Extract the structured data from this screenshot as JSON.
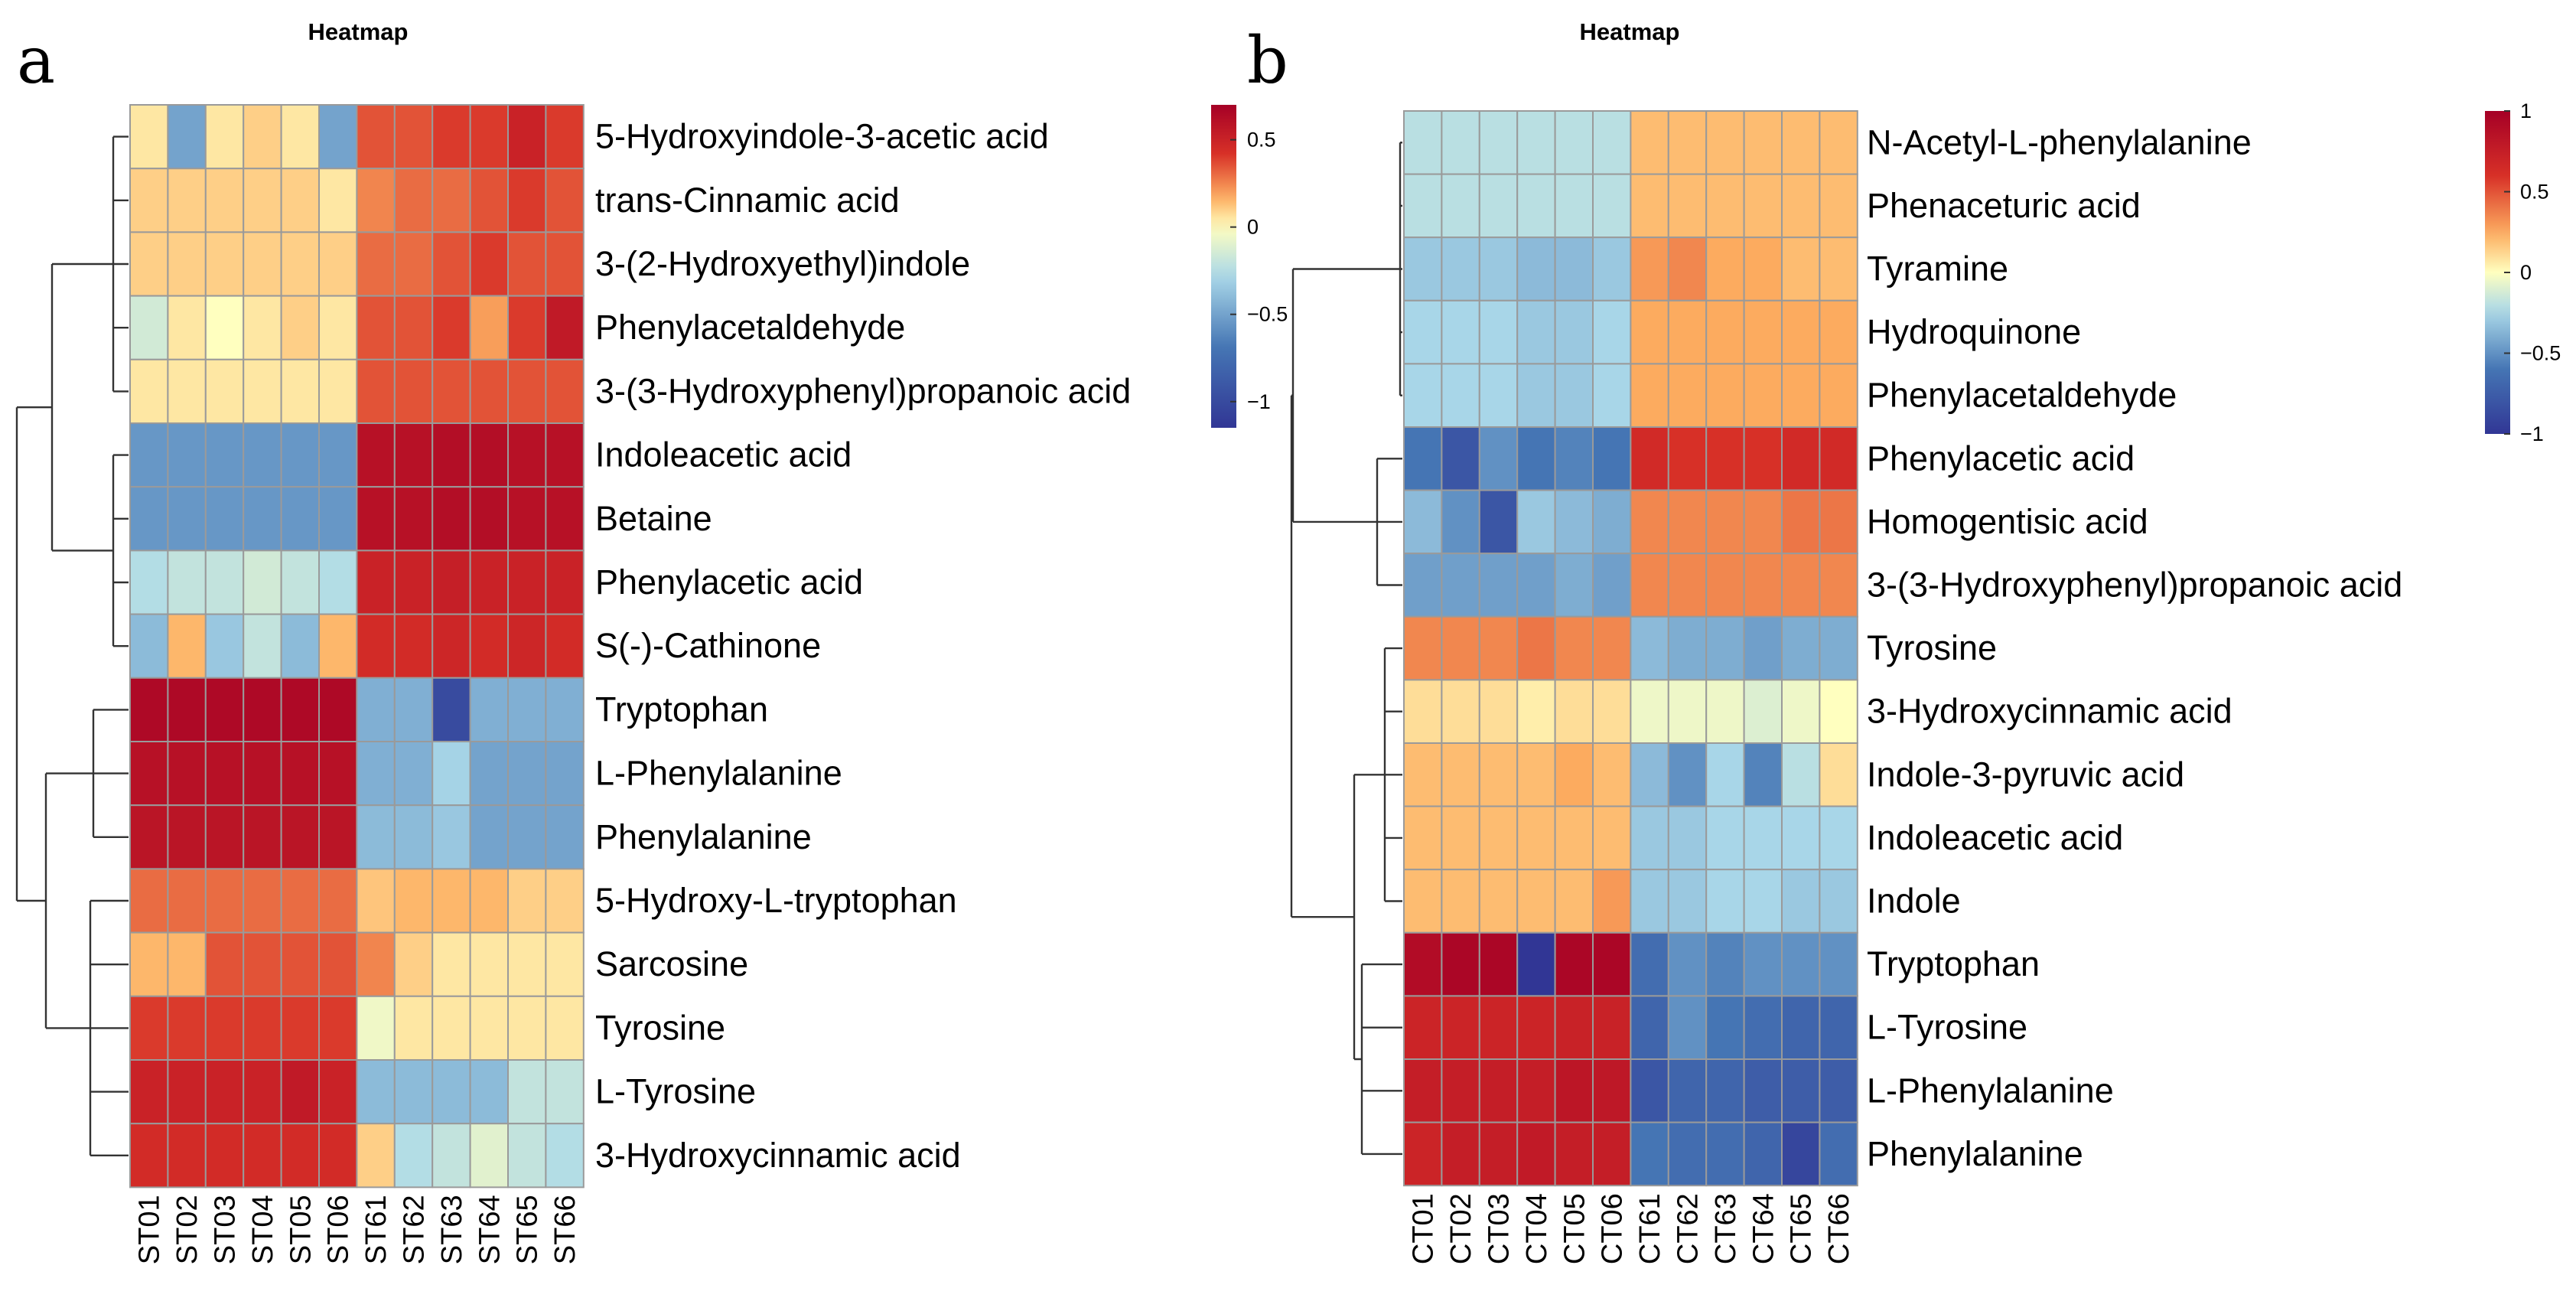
{
  "chart_data": [
    {
      "type": "heatmap",
      "panel": "a",
      "title": "Heatmap",
      "rows": [
        "5-Hydroxyindole-3-acetic acid",
        "trans-Cinnamic acid",
        "3-(2-Hydroxyethyl)indole",
        "Phenylacetaldehyde",
        "3-(3-Hydroxyphenyl)propanoic acid",
        "Indoleacetic acid",
        "Betaine",
        "Phenylacetic acid",
        "S(-)-Cathinone",
        "Tryptophan",
        "L-Phenylalanine",
        "Phenylalanine",
        "5-Hydroxy-L-tryptophan",
        "Sarcosine",
        "Tyrosine",
        "L-Tyrosine",
        "3-Hydroxycinnamic acid"
      ],
      "columns": [
        "ST01",
        "ST02",
        "ST03",
        "ST04",
        "ST05",
        "ST06",
        "ST61",
        "ST62",
        "ST63",
        "ST64",
        "ST65",
        "ST66"
      ],
      "values": [
        [
          0.05,
          -0.5,
          0.05,
          0.1,
          0.05,
          -0.5,
          0.35,
          0.35,
          0.4,
          0.4,
          0.5,
          0.4
        ],
        [
          0.1,
          0.1,
          0.1,
          0.1,
          0.1,
          0.05,
          0.25,
          0.3,
          0.3,
          0.35,
          0.4,
          0.35
        ],
        [
          0.1,
          0.1,
          0.1,
          0.1,
          0.1,
          0.1,
          0.3,
          0.3,
          0.35,
          0.4,
          0.35,
          0.35
        ],
        [
          -0.15,
          0.05,
          0.0,
          0.05,
          0.1,
          0.05,
          0.35,
          0.35,
          0.4,
          0.2,
          0.4,
          0.55
        ],
        [
          0.05,
          0.05,
          0.05,
          0.05,
          0.05,
          0.05,
          0.35,
          0.35,
          0.35,
          0.35,
          0.35,
          0.35
        ],
        [
          -0.55,
          -0.55,
          -0.55,
          -0.55,
          -0.55,
          -0.55,
          0.6,
          0.6,
          0.62,
          0.62,
          0.6,
          0.6
        ],
        [
          -0.55,
          -0.55,
          -0.55,
          -0.55,
          -0.55,
          -0.55,
          0.6,
          0.6,
          0.62,
          0.62,
          0.6,
          0.6
        ],
        [
          -0.25,
          -0.2,
          -0.2,
          -0.15,
          -0.2,
          -0.25,
          0.5,
          0.5,
          0.52,
          0.5,
          0.5,
          0.5
        ],
        [
          -0.4,
          0.15,
          -0.35,
          -0.2,
          -0.4,
          0.15,
          0.45,
          0.45,
          0.48,
          0.45,
          0.48,
          0.45
        ],
        [
          0.65,
          0.65,
          0.65,
          0.65,
          0.65,
          0.65,
          -0.45,
          -0.45,
          -1.0,
          -0.45,
          -0.45,
          -0.45
        ],
        [
          0.6,
          0.6,
          0.6,
          0.6,
          0.6,
          0.6,
          -0.45,
          -0.45,
          -0.3,
          -0.5,
          -0.5,
          -0.5
        ],
        [
          0.58,
          0.58,
          0.58,
          0.58,
          0.58,
          0.58,
          -0.4,
          -0.4,
          -0.35,
          -0.5,
          -0.5,
          -0.5
        ],
        [
          0.3,
          0.3,
          0.3,
          0.3,
          0.3,
          0.3,
          0.12,
          0.15,
          0.15,
          0.15,
          0.1,
          0.1
        ],
        [
          0.15,
          0.15,
          0.35,
          0.35,
          0.35,
          0.35,
          0.25,
          0.1,
          0.05,
          0.05,
          0.05,
          0.05
        ],
        [
          0.4,
          0.4,
          0.4,
          0.4,
          0.4,
          0.4,
          -0.05,
          0.05,
          0.05,
          0.05,
          0.05,
          0.05
        ],
        [
          0.5,
          0.5,
          0.5,
          0.5,
          0.55,
          0.5,
          -0.4,
          -0.4,
          -0.4,
          -0.4,
          -0.2,
          -0.2
        ],
        [
          0.45,
          0.45,
          0.45,
          0.45,
          0.45,
          0.45,
          0.1,
          -0.25,
          -0.2,
          -0.1,
          -0.2,
          -0.25
        ]
      ],
      "legend": {
        "ticks": [
          0.5,
          0,
          -0.5,
          -1
        ],
        "tick_labels": [
          "0.5",
          "0",
          "−0.5",
          "−1"
        ],
        "range": [
          -1.15,
          0.7
        ]
      }
    },
    {
      "type": "heatmap",
      "panel": "b",
      "title": "Heatmap",
      "rows": [
        "N-Acetyl-L-phenylalanine",
        "Phenaceturic acid",
        "Tyramine",
        "Hydroquinone",
        "Phenylacetaldehyde",
        "Phenylacetic acid",
        "Homogentisic acid",
        "3-(3-Hydroxyphenyl)propanoic acid",
        "Tyrosine",
        "3-Hydroxycinnamic acid",
        "Indole-3-pyruvic acid",
        "Indoleacetic acid",
        "Indole",
        "Tryptophan",
        "L-Tyrosine",
        "L-Phenylalanine",
        "Phenylalanine"
      ],
      "columns": [
        "CT01",
        "CT02",
        "CT03",
        "CT04",
        "CT05",
        "CT06",
        "CT61",
        "CT62",
        "CT63",
        "CT64",
        "CT65",
        "CT66"
      ],
      "values": [
        [
          -0.2,
          -0.2,
          -0.2,
          -0.2,
          -0.2,
          -0.2,
          0.2,
          0.2,
          0.2,
          0.2,
          0.2,
          0.2
        ],
        [
          -0.2,
          -0.2,
          -0.2,
          -0.2,
          -0.2,
          -0.2,
          0.2,
          0.2,
          0.2,
          0.2,
          0.2,
          0.2
        ],
        [
          -0.3,
          -0.3,
          -0.3,
          -0.35,
          -0.35,
          -0.3,
          0.3,
          0.35,
          0.25,
          0.25,
          0.2,
          0.2
        ],
        [
          -0.25,
          -0.25,
          -0.25,
          -0.3,
          -0.3,
          -0.25,
          0.25,
          0.25,
          0.25,
          0.25,
          0.25,
          0.25
        ],
        [
          -0.25,
          -0.25,
          -0.25,
          -0.3,
          -0.3,
          -0.25,
          0.25,
          0.25,
          0.25,
          0.25,
          0.25,
          0.25
        ],
        [
          -0.6,
          -0.8,
          -0.5,
          -0.6,
          -0.55,
          -0.6,
          0.65,
          0.6,
          0.6,
          0.6,
          0.65,
          0.65
        ],
        [
          -0.35,
          -0.5,
          -0.8,
          -0.3,
          -0.35,
          -0.4,
          0.35,
          0.35,
          0.35,
          0.35,
          0.4,
          0.4
        ],
        [
          -0.45,
          -0.45,
          -0.45,
          -0.45,
          -0.4,
          -0.45,
          0.35,
          0.35,
          0.35,
          0.35,
          0.35,
          0.35
        ],
        [
          0.35,
          0.35,
          0.35,
          0.4,
          0.35,
          0.35,
          -0.35,
          -0.4,
          -0.4,
          -0.45,
          -0.4,
          -0.4
        ],
        [
          0.1,
          0.1,
          0.1,
          0.05,
          0.1,
          0.1,
          -0.05,
          -0.05,
          -0.05,
          -0.1,
          -0.05,
          0.0
        ],
        [
          0.2,
          0.2,
          0.2,
          0.2,
          0.25,
          0.2,
          -0.35,
          -0.5,
          -0.25,
          -0.55,
          -0.2,
          0.1
        ],
        [
          0.2,
          0.2,
          0.2,
          0.2,
          0.2,
          0.2,
          -0.3,
          -0.3,
          -0.25,
          -0.25,
          -0.25,
          -0.25
        ],
        [
          0.2,
          0.2,
          0.2,
          0.2,
          0.2,
          0.3,
          -0.3,
          -0.3,
          -0.25,
          -0.25,
          -0.3,
          -0.3
        ],
        [
          0.9,
          0.95,
          0.95,
          -1.0,
          0.95,
          0.95,
          -0.65,
          -0.5,
          -0.55,
          -0.5,
          -0.5,
          -0.5
        ],
        [
          0.7,
          0.7,
          0.7,
          0.7,
          0.72,
          0.72,
          -0.7,
          -0.5,
          -0.6,
          -0.65,
          -0.7,
          -0.7
        ],
        [
          0.75,
          0.75,
          0.75,
          0.75,
          0.82,
          0.8,
          -0.8,
          -0.7,
          -0.7,
          -0.75,
          -0.75,
          -0.75
        ],
        [
          0.7,
          0.75,
          0.75,
          0.78,
          0.75,
          0.75,
          -0.6,
          -0.65,
          -0.65,
          -0.7,
          -0.9,
          -0.65
        ]
      ],
      "legend": {
        "ticks": [
          1,
          0.5,
          0,
          -0.5,
          -1
        ],
        "tick_labels": [
          "1",
          "0.5",
          "0",
          "−0.5",
          "−1"
        ],
        "range": [
          -1,
          1
        ]
      }
    }
  ]
}
